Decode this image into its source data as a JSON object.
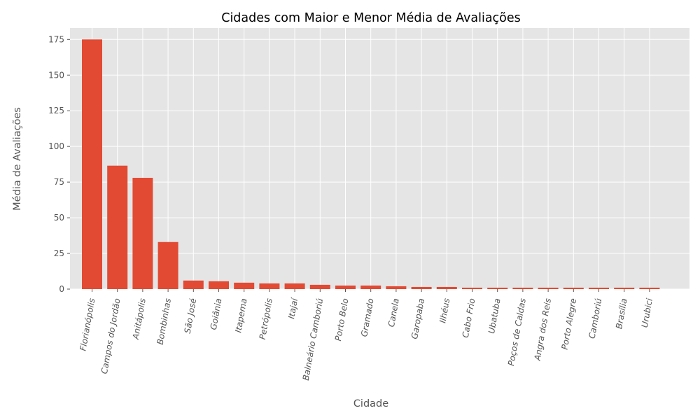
{
  "chart_data": {
    "type": "bar",
    "title": "Cidades com Maior e Menor Média de Avaliações",
    "xlabel": "Cidade",
    "ylabel": "Média de Avaliações",
    "categories": [
      "Florianópolis",
      "Campos do Jordão",
      "Anitápolis",
      "Bombinhas",
      "São José",
      "Goiânia",
      "Itapema",
      "Petrópolis",
      "Itajaí",
      "Balneário Camboriú",
      "Porto Belo",
      "Gramado",
      "Canela",
      "Garopaba",
      "Ilhéus",
      "Cabo Frio",
      "Ubatuba",
      "Poços de Caldas",
      "Angra dos Reis",
      "Porto Alegre",
      "Camboriú",
      "Brasília",
      "Urubici"
    ],
    "values": [
      175,
      86.5,
      78,
      33,
      6,
      5.5,
      4.5,
      4,
      4,
      3,
      2.5,
      2.5,
      2,
      1.5,
      1.5,
      1,
      1,
      1,
      1,
      1,
      1,
      1,
      1
    ],
    "ylim": [
      0,
      183
    ],
    "yticks": [
      0,
      25,
      50,
      75,
      100,
      125,
      150,
      175
    ],
    "bar_color": "#E24A33",
    "background_color": "#E5E5E5",
    "grid": true
  }
}
